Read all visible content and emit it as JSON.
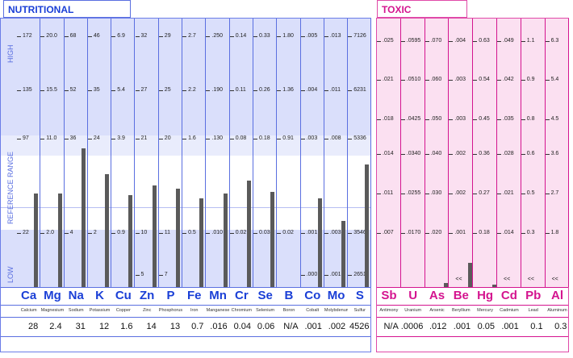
{
  "nutritional": {
    "title": "NUTRITIONAL  ELEMENTS",
    "axis": {
      "high": "HIGH",
      "reference": "REFERENCE  RANGE",
      "low": "LOW"
    },
    "elements": [
      {
        "sym": "Ca",
        "name": "Calcium",
        "value": "28",
        "ticks": [
          "172",
          "135",
          "97",
          "22"
        ],
        "low_tick": ""
      },
      {
        "sym": "Mg",
        "name": "Magnesium",
        "value": "2.4",
        "ticks": [
          "20.0",
          "15.5",
          "11.0",
          "2.0"
        ],
        "low_tick": ""
      },
      {
        "sym": "Na",
        "name": "Sodium",
        "value": "31",
        "ticks": [
          "68",
          "52",
          "36",
          "4"
        ],
        "low_tick": ""
      },
      {
        "sym": "K",
        "name": "Potassium",
        "value": "12",
        "ticks": [
          "46",
          "35",
          "24",
          "2"
        ],
        "low_tick": ""
      },
      {
        "sym": "Cu",
        "name": "Copper",
        "value": "1.6",
        "ticks": [
          "6.9",
          "5.4",
          "3.9",
          "0.9"
        ],
        "low_tick": ""
      },
      {
        "sym": "Zn",
        "name": "Zinc",
        "value": "14",
        "ticks": [
          "32",
          "27",
          "21",
          "10"
        ],
        "low_tick": "5"
      },
      {
        "sym": "P",
        "name": "Phosphorus",
        "value": "13",
        "ticks": [
          "29",
          "25",
          "20",
          "11"
        ],
        "low_tick": "7"
      },
      {
        "sym": "Fe",
        "name": "Iron",
        "value": "0.7",
        "ticks": [
          "2.7",
          "2.2",
          "1.6",
          "0.5"
        ],
        "low_tick": ""
      },
      {
        "sym": "Mn",
        "name": "Manganese",
        "value": ".016",
        "ticks": [
          ".250",
          ".190",
          ".130",
          ".010"
        ],
        "low_tick": ""
      },
      {
        "sym": "Cr",
        "name": "Chromium",
        "value": "0.04",
        "ticks": [
          "0.14",
          "0.11",
          "0.08",
          "0.02"
        ],
        "low_tick": ""
      },
      {
        "sym": "Se",
        "name": "Selenium",
        "value": "0.06",
        "ticks": [
          "0.33",
          "0.26",
          "0.18",
          "0.03"
        ],
        "low_tick": ""
      },
      {
        "sym": "B",
        "name": "Boron",
        "value": "N/A",
        "ticks": [
          "1.80",
          "1.36",
          "0.91",
          "0.02"
        ],
        "low_tick": ""
      },
      {
        "sym": "Co",
        "name": "Cobalt",
        "value": ".001",
        "ticks": [
          ".005",
          ".004",
          ".003",
          ".001"
        ],
        "low_tick": ".000"
      },
      {
        "sym": "Mo",
        "name": "Molybdenum",
        "value": ".002",
        "ticks": [
          ".013",
          ".011",
          ".008",
          ".003"
        ],
        "low_tick": ".001"
      },
      {
        "sym": "S",
        "name": "Sulfur",
        "value": "4526",
        "ticks": [
          "7126",
          "6231",
          "5336",
          "3546"
        ],
        "low_tick": "2651"
      }
    ]
  },
  "toxic": {
    "title": "TOXIC  ELEMENTS",
    "elements": [
      {
        "sym": "Sb",
        "name": "Antimony",
        "value": "N/A",
        "ticks": [
          ".025",
          ".021",
          ".018",
          ".014",
          ".011",
          ".007"
        ],
        "flag": ""
      },
      {
        "sym": "U",
        "name": "Uranium",
        "value": ".0006",
        "ticks": [
          ".0595",
          ".0510",
          ".0425",
          ".0340",
          ".0255",
          ".0170"
        ],
        "flag": ""
      },
      {
        "sym": "As",
        "name": "Arsenic",
        "value": ".012",
        "ticks": [
          ".070",
          ".060",
          ".050",
          ".040",
          ".030",
          ".020"
        ],
        "flag": ""
      },
      {
        "sym": "Be",
        "name": "Beryllium",
        "value": ".001",
        "ticks": [
          ".004",
          ".003",
          ".003",
          ".002",
          ".002",
          ".001"
        ],
        "flag": "<<"
      },
      {
        "sym": "Hg",
        "name": "Mercury",
        "value": "0.05",
        "ticks": [
          "0.63",
          "0.54",
          "0.45",
          "0.36",
          "0.27",
          "0.18"
        ],
        "flag": ""
      },
      {
        "sym": "Cd",
        "name": "Cadmium",
        "value": ".001",
        "ticks": [
          ".049",
          ".042",
          ".035",
          ".028",
          ".021",
          ".014"
        ],
        "flag": "<<"
      },
      {
        "sym": "Pb",
        "name": "Lead",
        "value": "0.1",
        "ticks": [
          "1.1",
          "0.9",
          "0.8",
          "0.6",
          "0.5",
          "0.3"
        ],
        "flag": "<<"
      },
      {
        "sym": "Al",
        "name": "Aluminum",
        "value": "0.3",
        "ticks": [
          "6.3",
          "5.4",
          "4.5",
          "3.6",
          "2.7",
          "1.8"
        ],
        "flag": "<<"
      }
    ]
  },
  "chart_data": [
    {
      "type": "bar",
      "title": "NUTRITIONAL  ELEMENTS",
      "categories": [
        "Ca",
        "Mg",
        "Na",
        "K",
        "Cu",
        "Zn",
        "P",
        "Fe",
        "Mn",
        "Cr",
        "Se",
        "B",
        "Co",
        "Mo",
        "S"
      ],
      "series": [
        {
          "values": [
            28,
            2.4,
            31,
            12,
            1.6,
            14,
            13,
            0.7,
            0.016,
            0.04,
            0.06,
            null,
            0.001,
            0.002,
            4526
          ]
        }
      ],
      "relative_levels": [
        0.58,
        0.58,
        0.86,
        0.7,
        0.57,
        0.63,
        0.61,
        0.55,
        0.58,
        0.66,
        0.59,
        0.0,
        0.55,
        0.41,
        0.76
      ]
    },
    {
      "type": "bar",
      "title": "TOXIC  ELEMENTS",
      "categories": [
        "Sb",
        "U",
        "As",
        "Be",
        "Hg",
        "Cd",
        "Pb",
        "Al"
      ],
      "series": [
        {
          "values": [
            null,
            0.0006,
            0.012,
            0.001,
            0.05,
            0.001,
            0.1,
            0.3
          ]
        }
      ],
      "relative_levels": [
        0.0,
        0.0,
        0.03,
        0.18,
        0.02,
        0.0,
        0.0,
        0.0
      ]
    }
  ],
  "colors": {
    "nut_accent": "#1a3fd6",
    "tox_accent": "#d4148f",
    "nut_high_band": "#d8dcfa",
    "nut_ref_band": "#eef0fc",
    "tox_band": "#fbe3f2",
    "bar": "#5a5a5a"
  }
}
